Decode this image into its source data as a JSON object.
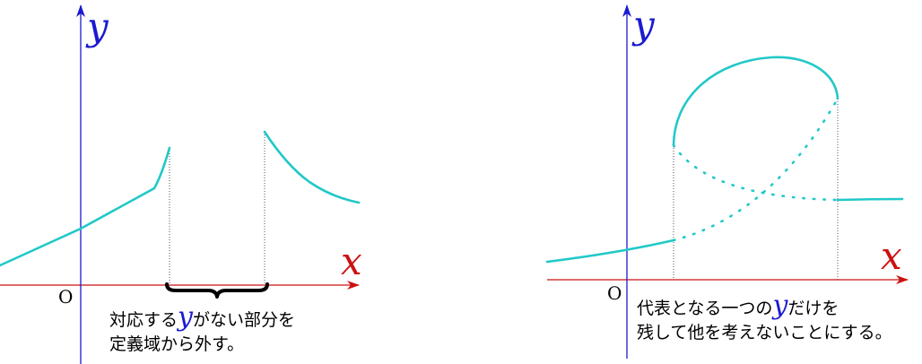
{
  "left_panel": {
    "x_label": "x",
    "y_label": "y",
    "origin_label": "O",
    "caption": {
      "line1_before": "対応する",
      "line1_var": "y",
      "line1_after": "がない部分を",
      "line2": "定義域から外す。"
    }
  },
  "right_panel": {
    "x_label": "x",
    "y_label": "y",
    "origin_label": "O",
    "caption": {
      "line1_before": "代表となる一つの",
      "line1_var": "y",
      "line1_after": "だけを",
      "line2": "残して他を考えないことにする。"
    }
  },
  "colors": {
    "x_axis": "#cc1111",
    "y_axis": "#1a1ad0",
    "curve": "#22c8c8",
    "guide": "#555555",
    "brace": "#000000"
  }
}
